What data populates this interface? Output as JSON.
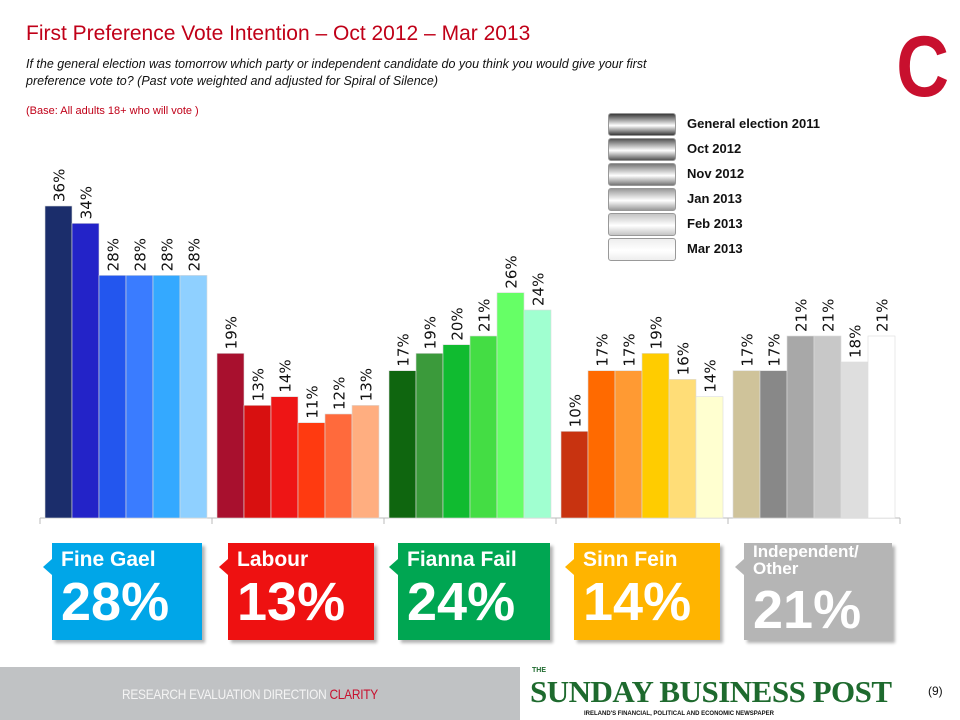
{
  "header": {
    "title": "First Preference Vote Intention – Oct 2012 – Mar 2013",
    "subtitle": "If the general election was tomorrow which party or independent  candidate do you think you would give your first preference vote to?  (Past vote weighted and adjusted for Spiral of Silence)",
    "base": "(Base: All adults 18+ who will vote )",
    "logo": "C"
  },
  "chart_data": {
    "type": "bar",
    "title": "First Preference Vote Intention – Oct 2012 – Mar 2013",
    "ylim": [
      0,
      40
    ],
    "grid": false,
    "legend_position": "top-right",
    "categories": [
      "Fine Gael",
      "Labour",
      "Fianna Fail",
      "Sinn Fein",
      "Independent/ Other"
    ],
    "series": [
      {
        "name": "General election 2011",
        "values": [
          36,
          19,
          17,
          10,
          17
        ]
      },
      {
        "name": "Oct 2012",
        "values": [
          34,
          13,
          19,
          17,
          17
        ]
      },
      {
        "name": "Nov 2012",
        "values": [
          28,
          14,
          20,
          17,
          21
        ]
      },
      {
        "name": "Jan 2013",
        "values": [
          28,
          11,
          21,
          19,
          21
        ]
      },
      {
        "name": "Feb 2013",
        "values": [
          28,
          12,
          26,
          16,
          18
        ]
      },
      {
        "name": "Mar 2013",
        "values": [
          28,
          13,
          24,
          14,
          21
        ]
      }
    ],
    "colors": [
      [
        "#1b2d6b",
        "#2323c8",
        "#2356ee",
        "#3a7cff",
        "#34a9ff",
        "#8fd0ff"
      ],
      [
        "#a8102e",
        "#d81010",
        "#ee1515",
        "#ff3a10",
        "#ff6a3c",
        "#ffae80"
      ],
      [
        "#0f660f",
        "#3b9a3b",
        "#10bb30",
        "#44dd44",
        "#66ff66",
        "#a0ffd0"
      ],
      [
        "#c83310",
        "#ff6a00",
        "#ff9a33",
        "#ffcc00",
        "#ffdd77",
        "#ffffd0"
      ],
      [
        "#cfc39a",
        "#888888",
        "#a8a8a8",
        "#c8c8c8",
        "#dedede",
        "#ffffff"
      ]
    ],
    "legend_swatches": [
      "#3a3a3a",
      "#555555",
      "#777777",
      "#9a9a9a",
      "#c4c4c4",
      "#eeeeee"
    ]
  },
  "summary": [
    {
      "party": "Fine Gael",
      "value": "28%",
      "color": "#00a6e8"
    },
    {
      "party": "Labour",
      "value": "13%",
      "color": "#ee1111"
    },
    {
      "party": "Fianna Fail",
      "value": "24%",
      "color": "#00a652"
    },
    {
      "party": "Sinn Fein",
      "value": "14%",
      "color": "#ffb400"
    },
    {
      "party": "Independent/ Other",
      "value": "21%",
      "color": "#b5b5b5"
    }
  ],
  "footer": {
    "tagline": "RESEARCH EVALUATION DIRECTION",
    "tagline_accent": "CLARITY",
    "publisher": "SUNDAY BUSINESS POST",
    "publisher_prefix": "THE",
    "publisher_tag": "IRELAND'S FINANCIAL, POLITICAL AND ECONOMIC NEWSPAPER",
    "page": "(9)"
  }
}
